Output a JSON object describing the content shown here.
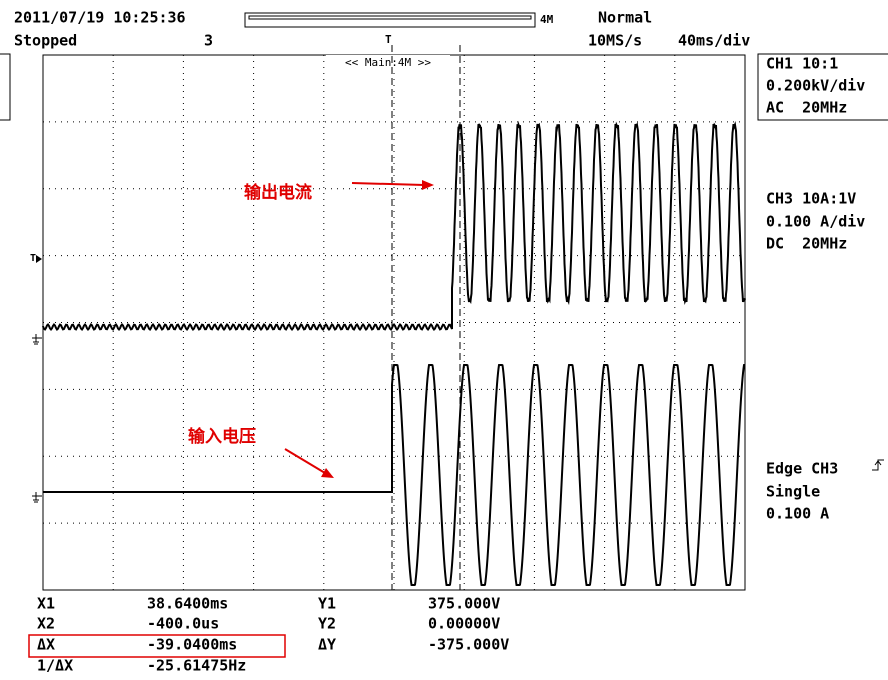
{
  "header": {
    "datetime": "2011/07/19 10:25:36",
    "status": "Stopped",
    "count": "3",
    "memory": "4M",
    "mode": "Normal",
    "sample_rate": "10MS/s",
    "timebase": "40ms/div",
    "trigger_marker": "T",
    "zoom_label": "<< Main:4M >>"
  },
  "channels": [
    {
      "name": "CH1 10:1",
      "scale": "0.200kV/div",
      "coupling": "AC  20MHz"
    },
    {
      "name": "CH3 10A:1V",
      "scale": "0.100 A/div",
      "coupling": "DC  20MHz"
    }
  ],
  "trigger": {
    "source": "Edge CH3",
    "mode": "Single",
    "level": "0.100 A"
  },
  "annotations": {
    "output_current": "输出电流",
    "input_voltage": "输入电压"
  },
  "measurements": {
    "rows": [
      [
        "X1",
        "38.6400ms",
        "Y1",
        "375.000V"
      ],
      [
        "X2",
        "-400.0us",
        "Y2",
        "0.00000V"
      ],
      [
        "ΔX",
        "-39.0400ms",
        "ΔY",
        "-375.000V"
      ],
      [
        "1/ΔX",
        "-25.61475Hz"
      ]
    ]
  }
}
